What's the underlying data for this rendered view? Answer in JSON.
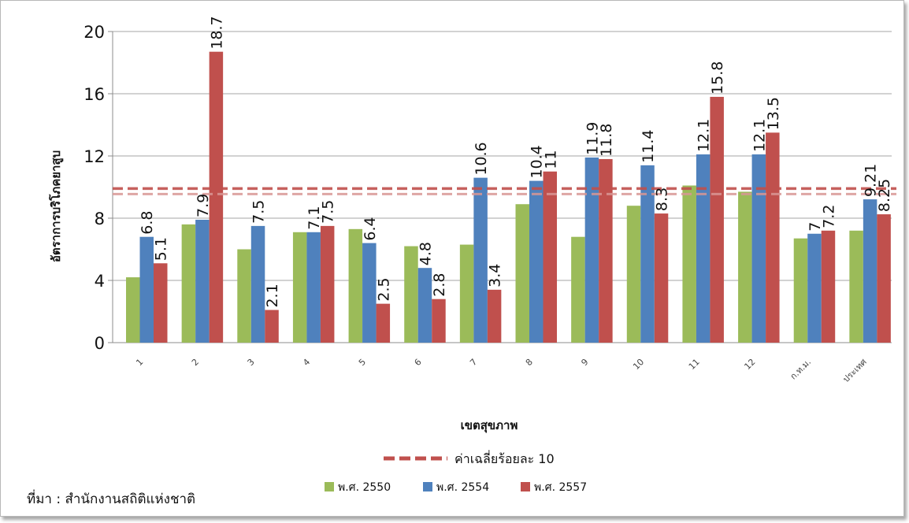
{
  "chart_data": {
    "type": "bar",
    "categories": [
      "1",
      "2",
      "3",
      "4",
      "5",
      "6",
      "7",
      "8",
      "9",
      "10",
      "11",
      "12",
      "ก.ท.ม.",
      "ประเทศ"
    ],
    "series": [
      {
        "name": "พ.ศ. 2550",
        "color": "#9bbb59",
        "values": [
          4.2,
          7.6,
          6.0,
          7.1,
          7.3,
          6.2,
          6.3,
          8.9,
          6.8,
          8.8,
          10.1,
          9.7,
          6.7,
          7.2
        ],
        "labels": [
          "",
          "",
          "",
          "",
          "",
          "",
          "",
          "",
          "",
          "",
          "",
          "",
          "",
          ""
        ]
      },
      {
        "name": "พ.ศ. 2554",
        "color": "#4f81bd",
        "values": [
          6.8,
          7.9,
          7.5,
          7.1,
          6.4,
          4.8,
          10.6,
          10.4,
          11.9,
          11.4,
          12.1,
          12.1,
          7.0,
          9.21
        ],
        "labels": [
          "6.8",
          "7.9",
          "7.5",
          "7.1",
          "6.4",
          "4.8",
          "10.6",
          "10.4",
          "11.9",
          "11.4",
          "12.1",
          "12.1",
          "7",
          "9.21"
        ]
      },
      {
        "name": "พ.ศ. 2557",
        "color": "#c0504d",
        "values": [
          5.1,
          18.7,
          2.1,
          7.5,
          2.5,
          2.8,
          3.4,
          11.0,
          11.8,
          8.3,
          15.8,
          13.5,
          7.2,
          8.25
        ],
        "labels": [
          "5.1",
          "18.7",
          "2.1",
          "7.5",
          "2.5",
          "2.8",
          "3.4",
          "11",
          "11.8",
          "8.3",
          "15.8",
          "13.5",
          "7.2",
          "8.25"
        ]
      }
    ],
    "xlabel": "เขตสุขภาพ",
    "ylabel": "อัตราการบริโภคยาสูบ",
    "ylim": [
      0,
      20
    ],
    "yticks": [
      0,
      4,
      8,
      12,
      16,
      20
    ],
    "reference_line": {
      "value": 9.7,
      "label": "ค่าเฉลี่ยร้อยละ 10",
      "color": "#c0504d"
    },
    "grid": true,
    "legend_position": "bottom"
  },
  "source_note": "ที่มา : สำนักงานสถิติแห่งชาติ"
}
